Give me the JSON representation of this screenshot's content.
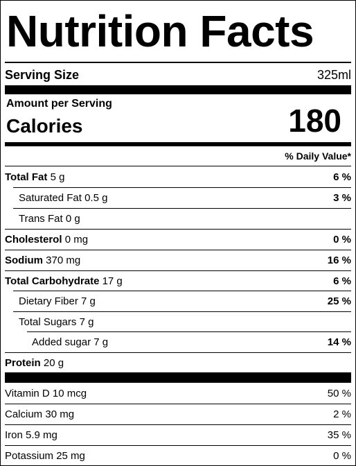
{
  "title": "Nutrition Facts",
  "serving": {
    "label": "Serving Size",
    "value": "325ml"
  },
  "amount_per_serving": "Amount per Serving",
  "calories": {
    "label": "Calories",
    "value": "180"
  },
  "daily_value_header": "% Daily Value*",
  "nutrients": [
    {
      "name": "Total Fat",
      "amount": "5 g",
      "dv": "6 %"
    },
    {
      "name": "Saturated Fat",
      "amount": "0.5 g",
      "dv": "3 %"
    },
    {
      "name": "Trans Fat",
      "amount": "0 g",
      "dv": ""
    },
    {
      "name": "Cholesterol",
      "amount": "0 mg",
      "dv": "0 %"
    },
    {
      "name": "Sodium",
      "amount": "370 mg",
      "dv": "16 %"
    },
    {
      "name": "Total Carbohydrate",
      "amount": "17 g",
      "dv": "6 %"
    },
    {
      "name": "Dietary Fiber",
      "amount": "7 g",
      "dv": "25 %"
    },
    {
      "name": "Total Sugars",
      "amount": "7 g",
      "dv": ""
    },
    {
      "name": "Added sugar",
      "amount": "7 g",
      "dv": "14 %"
    },
    {
      "name": "Protein",
      "amount": "20 g",
      "dv": ""
    }
  ],
  "vitamins": [
    {
      "name": "Vitamin D",
      "amount": "10 mcg",
      "dv": "50 %"
    },
    {
      "name": "Calcium",
      "amount": "30 mg",
      "dv": "2 %"
    },
    {
      "name": "Iron",
      "amount": "5.9 mg",
      "dv": "35 %"
    },
    {
      "name": "Potassium",
      "amount": "25 mg",
      "dv": "0 %"
    }
  ]
}
